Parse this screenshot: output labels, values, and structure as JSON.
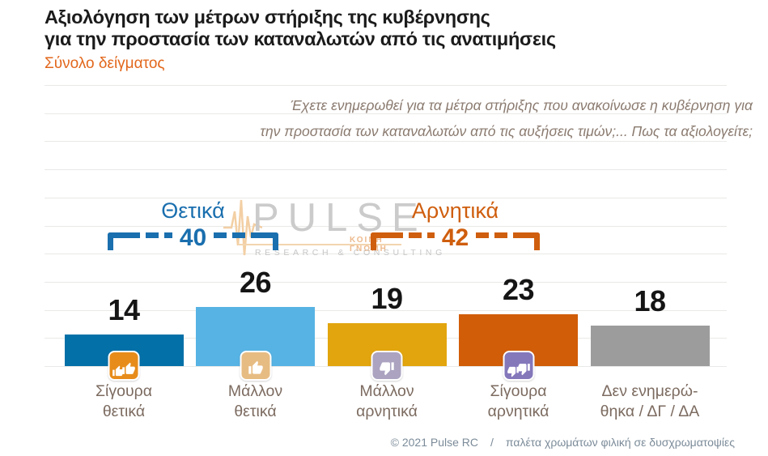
{
  "header": {
    "title_line1": "Αξιολόγηση των μέτρων στήριξης της κυβέρνησης",
    "title_line2": "για την προστασία των καταναλωτών από τις ανατιμήσεις",
    "subtitle": "Σύνολο δείγματος"
  },
  "question": {
    "line1": "Έχετε ενημερωθεί για τα μέτρα στήριξης που ανακοίνωσε η κυβέρνηση για",
    "line2": "την προστασία των καταναλωτών από τις αυξήσεις τιμών;... Πως τα αξιολογείτε;"
  },
  "watermark": {
    "brand": "PULSE",
    "sub_brand": "ΚΟΙΝΗ ΓΝΩΜΗ",
    "tagline": "RESEARCH & CONSULTING"
  },
  "chart_data": {
    "type": "bar",
    "title": "Αξιολόγηση των μέτρων στήριξης της κυβέρνησης για την προστασία των καταναλωτών από τις ανατιμήσεις",
    "subtitle": "Σύνολο δείγματος",
    "grid": true,
    "categories": [
      "Σίγουρα θετικά",
      "Μάλλον θετικά",
      "Μάλλον αρνητικά",
      "Σίγουρα αρνητικά",
      "Δεν ενημερώθηκα / ΔΓ / ΔΑ"
    ],
    "category_lines": [
      [
        "Σίγουρα",
        "θετικά"
      ],
      [
        "Μάλλον",
        "θετικά"
      ],
      [
        "Μάλλον",
        "αρνητικά"
      ],
      [
        "Σίγουρα",
        "αρνητικά"
      ],
      [
        "Δεν ενημερώ-",
        "θηκα / ΔΓ / ΔΑ"
      ]
    ],
    "values": [
      14,
      26,
      19,
      23,
      18
    ],
    "bar_colors": [
      "#0470a8",
      "#57b3e4",
      "#e2a50e",
      "#d15d08",
      "#9c9c9c"
    ],
    "icons": [
      {
        "name": "thumbs-up-double-icon",
        "thumbs": 2,
        "dir": "up",
        "box_color": "#e78c1b"
      },
      {
        "name": "thumbs-up-icon",
        "thumbs": 1,
        "dir": "up",
        "box_color": "#e7bc83"
      },
      {
        "name": "thumbs-down-icon",
        "thumbs": 1,
        "dir": "down",
        "box_color": "#aba3c0"
      },
      {
        "name": "thumbs-down-double-icon",
        "thumbs": 2,
        "dir": "down",
        "box_color": "#8478bb"
      },
      null
    ],
    "groups": [
      {
        "label": "Θετικά",
        "value": 40,
        "color": "#1a6fae",
        "bars": [
          0,
          1
        ]
      },
      {
        "label": "Αρνητικά",
        "value": 42,
        "color": "#cf5e0e",
        "bars": [
          2,
          3
        ]
      }
    ]
  },
  "footer": {
    "copyright": "© 2021 Pulse RC",
    "separator": "/",
    "note": "παλέτα χρωμάτων φιλική σε δυσχρωματοψίες"
  }
}
